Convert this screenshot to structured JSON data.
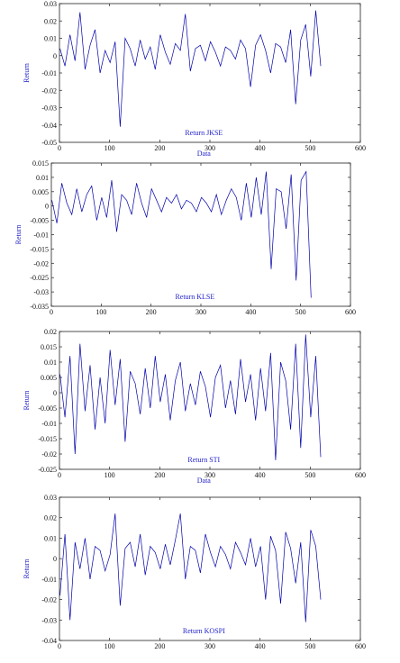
{
  "chart_data": [
    {
      "type": "line",
      "title": "Return JKSE",
      "xlabel": "Data",
      "ylabel": "Return",
      "xlim": [
        0,
        600
      ],
      "ylim": [
        -0.05,
        0.03
      ],
      "x_ticks": [
        "0",
        "100",
        "200",
        "300",
        "400",
        "500",
        "600"
      ],
      "y_ticks": [
        "0.03",
        "0.02",
        "0.01",
        "0",
        "-0.01",
        "-0.02",
        "-0.03",
        "-0.04",
        "-0.05"
      ],
      "series": [
        {
          "color": "#0000aa",
          "x_start": 1,
          "x_step": 10,
          "values": [
            0.004,
            -0.006,
            0.012,
            -0.003,
            0.025,
            -0.008,
            0.006,
            0.015,
            -0.01,
            0.003,
            -0.004,
            0.008,
            -0.041,
            0.01,
            0.004,
            -0.006,
            0.009,
            -0.002,
            0.005,
            -0.008,
            0.012,
            0.002,
            -0.005,
            0.007,
            0.003,
            0.024,
            -0.009,
            0.004,
            0.006,
            -0.003,
            0.008,
            0.002,
            -0.006,
            0.005,
            0.003,
            -0.002,
            0.009,
            0.004,
            -0.018,
            0.006,
            0.012,
            0.003,
            -0.01,
            0.007,
            0.005,
            -0.004,
            0.015,
            -0.028,
            0.009,
            0.018,
            -0.012,
            0.026,
            -0.006
          ]
        }
      ]
    },
    {
      "type": "line",
      "title": "Return KLSE",
      "xlabel": "",
      "ylabel": "Return",
      "xlim": [
        0,
        600
      ],
      "ylim": [
        -0.035,
        0.015
      ],
      "x_ticks": [
        "0",
        "100",
        "200",
        "300",
        "400",
        "500",
        "600"
      ],
      "y_ticks": [
        "0.015",
        "0.01",
        "0.005",
        "0",
        "-0.005",
        "-0.01",
        "-0.015",
        "-0.02",
        "-0.025",
        "-0.03",
        "-0.035"
      ],
      "series": [
        {
          "color": "#0000aa",
          "x_start": 1,
          "x_step": 10,
          "values": [
            0.002,
            -0.006,
            0.008,
            0.001,
            -0.003,
            0.006,
            -0.002,
            0.004,
            0.007,
            -0.005,
            0.003,
            -0.004,
            0.009,
            -0.009,
            0.004,
            0.002,
            -0.003,
            0.008,
            0.001,
            -0.004,
            0.006,
            0.002,
            -0.002,
            0.003,
            0.001,
            0.004,
            -0.001,
            0.002,
            0.001,
            -0.002,
            0.003,
            0.001,
            -0.002,
            0.004,
            -0.003,
            0.002,
            0.006,
            0.003,
            -0.005,
            0.008,
            -0.004,
            0.01,
            -0.003,
            0.012,
            -0.022,
            0.006,
            0.005,
            -0.008,
            0.011,
            -0.026,
            0.009,
            0.012,
            -0.032
          ]
        }
      ]
    },
    {
      "type": "line",
      "title": "Return STI",
      "xlabel": "Data",
      "ylabel": "Return",
      "xlim": [
        0,
        600
      ],
      "ylim": [
        -0.025,
        0.02
      ],
      "x_ticks": [
        "0",
        "100",
        "200",
        "300",
        "400",
        "500",
        "600"
      ],
      "y_ticks": [
        "0.02",
        "0.015",
        "0.01",
        "0.005",
        "0",
        "-0.005",
        "-0.01",
        "-0.015",
        "-0.02",
        "-0.025"
      ],
      "series": [
        {
          "color": "#0000aa",
          "x_start": 1,
          "x_step": 10,
          "values": [
            0.006,
            -0.008,
            0.012,
            -0.02,
            0.016,
            -0.006,
            0.009,
            -0.012,
            0.005,
            -0.01,
            0.014,
            -0.004,
            0.011,
            -0.016,
            0.007,
            0.003,
            -0.007,
            0.008,
            -0.005,
            0.012,
            -0.003,
            0.006,
            -0.009,
            0.004,
            0.01,
            -0.006,
            0.003,
            -0.004,
            0.007,
            0.002,
            -0.008,
            0.005,
            0.009,
            -0.005,
            0.004,
            -0.007,
            0.011,
            -0.003,
            0.006,
            -0.009,
            0.008,
            -0.006,
            0.013,
            -0.022,
            0.01,
            0.004,
            -0.012,
            0.016,
            -0.018,
            0.019,
            -0.008,
            0.012,
            -0.021
          ]
        }
      ]
    },
    {
      "type": "line",
      "title": "Return KOSPI",
      "xlabel": "",
      "ylabel": "Return",
      "xlim": [
        0,
        600
      ],
      "ylim": [
        -0.04,
        0.03
      ],
      "x_ticks": [
        "0",
        "100",
        "200",
        "300",
        "400",
        "500",
        "600"
      ],
      "y_ticks": [
        "0.03",
        "0.02",
        "0.01",
        "0",
        "-0.01",
        "-0.02",
        "-0.03",
        "-0.04"
      ],
      "series": [
        {
          "color": "#0000aa",
          "x_start": 1,
          "x_step": 10,
          "values": [
            -0.018,
            0.012,
            -0.03,
            0.008,
            -0.005,
            0.01,
            -0.01,
            0.006,
            0.004,
            -0.006,
            0.002,
            0.022,
            -0.023,
            0.005,
            0.008,
            -0.004,
            0.012,
            -0.008,
            0.006,
            0.003,
            -0.005,
            0.007,
            -0.003,
            0.009,
            0.022,
            -0.01,
            0.006,
            0.004,
            -0.007,
            0.012,
            0.003,
            -0.004,
            0.006,
            0.002,
            -0.005,
            0.008,
            0.003,
            -0.003,
            0.01,
            -0.004,
            0.006,
            -0.02,
            0.011,
            0.004,
            -0.022,
            0.013,
            0.005,
            -0.012,
            0.008,
            -0.031,
            0.014,
            0.006,
            -0.02
          ]
        }
      ]
    }
  ]
}
